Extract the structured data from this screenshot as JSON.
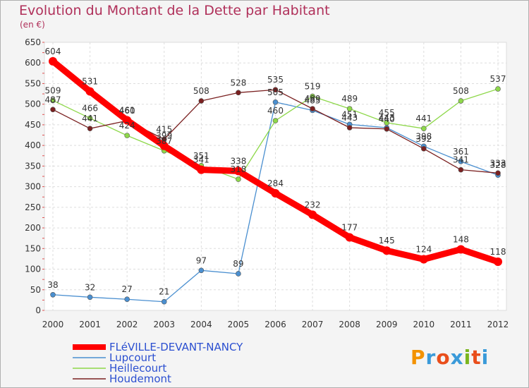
{
  "chart_data": {
    "type": "line",
    "title": "Evolution du Montant de la Dette par Habitant",
    "subtitle": "(en €)",
    "x": [
      "2000",
      "2001",
      "2002",
      "2003",
      "2004",
      "2005",
      "2006",
      "2007",
      "2008",
      "2009",
      "2010",
      "2011",
      "2012"
    ],
    "ylim": [
      0,
      650
    ],
    "yticks": [
      0,
      50,
      100,
      150,
      200,
      250,
      300,
      350,
      400,
      450,
      500,
      550,
      600,
      650
    ],
    "grid": true,
    "legend_placement": "bottom-left",
    "series": [
      {
        "name": "FLéVILLE-DEVANT-NANCY",
        "color": "#ff0000",
        "values": [
          604,
          531,
          461,
          399,
          341,
          338,
          284,
          232,
          177,
          145,
          124,
          148,
          118
        ]
      },
      {
        "name": "Lupcourt",
        "color": "#4a8fd0",
        "values": [
          38,
          32,
          27,
          21,
          97,
          89,
          505,
          485,
          451,
          443,
          398,
          361,
          328
        ]
      },
      {
        "name": "Heillecourt",
        "color": "#8ed84a",
        "values": [
          509,
          466,
          424,
          387,
          351,
          318,
          460,
          519,
          489,
          455,
          441,
          508,
          537
        ]
      },
      {
        "name": "Houdemont",
        "color": "#7a2020",
        "values": [
          487,
          441,
          460,
          415,
          508,
          528,
          535,
          489,
          443,
          440,
          392,
          341,
          333
        ]
      }
    ]
  },
  "logo": {
    "text": "Proxiti",
    "colors": [
      "#f39200",
      "#3a9ad9",
      "#e94e1b",
      "#3a9ad9",
      "#7ab51d",
      "#e94e1b",
      "#3a9ad9"
    ]
  }
}
